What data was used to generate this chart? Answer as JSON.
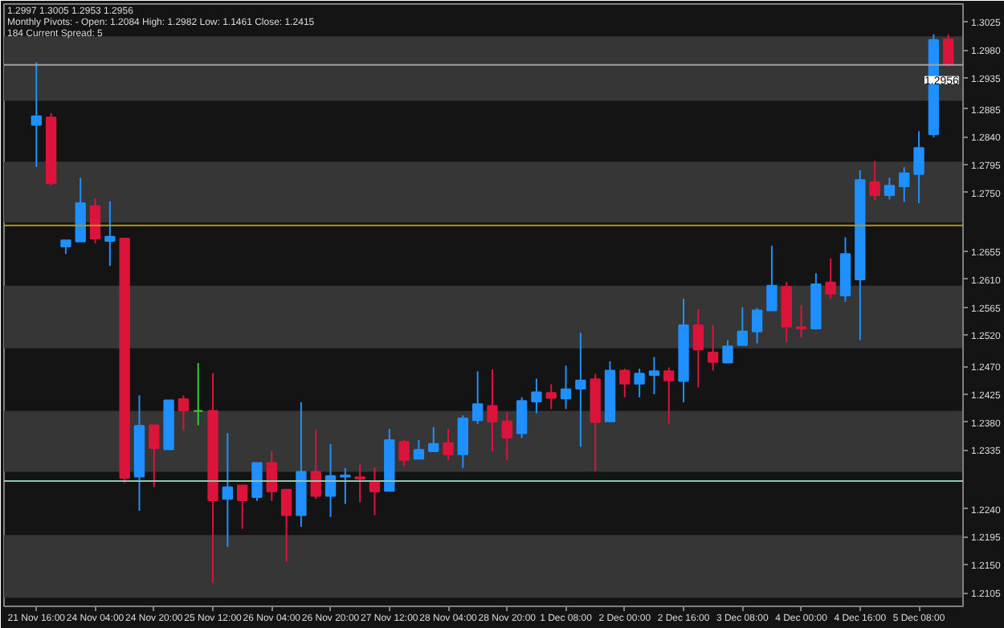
{
  "chart_data": {
    "type": "candlestick",
    "annotations": [
      "1.2997 1.3005 1.2953 1.2956",
      "Monthly Pivots: - Open: 1.2084 High: 1.2982 Low: 1.1461 Close: 1.2415",
      "184   Current Spread: 5"
    ],
    "categories": [
      "21 Nov 16:00",
      null,
      null,
      null,
      "24 Nov 04:00",
      null,
      null,
      null,
      "24 Nov 20:00",
      null,
      null,
      null,
      "25 Nov 12:00",
      null,
      null,
      null,
      "26 Nov 04:00",
      null,
      null,
      null,
      "26 Nov 20:00",
      null,
      null,
      null,
      "27 Nov 12:00",
      null,
      null,
      null,
      "28 Nov 04:00",
      null,
      null,
      null,
      "28 Nov 20:00",
      null,
      null,
      null,
      "1 Dec 08:00",
      null,
      null,
      null,
      "2 Dec 00:00",
      null,
      null,
      null,
      "2 Dec 16:00",
      null,
      null,
      null,
      "3 Dec 08:00",
      null,
      null,
      null,
      "4 Dec 00:00",
      null,
      null,
      null,
      "4 Dec 16:00",
      null,
      null,
      null,
      "5 Dec 08:00",
      null,
      null
    ],
    "ohlc": [
      [
        1.2859,
        1.296,
        1.2791,
        1.2873
      ],
      [
        1.2871,
        1.2878,
        1.2762,
        1.2765
      ],
      [
        1.2663,
        1.2673,
        1.2651,
        1.2673
      ],
      [
        1.2671,
        1.2774,
        1.2671,
        1.2733
      ],
      [
        1.2728,
        1.2741,
        1.2668,
        1.2676
      ],
      [
        1.2672,
        1.2736,
        1.2632,
        1.2679
      ],
      [
        1.2676,
        1.2677,
        1.2282,
        1.229
      ],
      [
        1.2292,
        1.2423,
        1.2237,
        1.2374
      ],
      [
        1.2375,
        1.2375,
        1.2275,
        1.2338
      ],
      [
        1.2336,
        1.2415,
        1.2336,
        1.2415
      ],
      [
        1.2417,
        1.2423,
        1.2367,
        1.2399
      ],
      [
        1.2398,
        1.2475,
        1.2375,
        1.2398
      ],
      [
        1.2398,
        1.2459,
        1.2121,
        1.2254
      ],
      [
        1.2256,
        1.2362,
        1.2179,
        1.2275
      ],
      [
        1.2278,
        1.2278,
        1.2208,
        1.2254
      ],
      [
        1.2259,
        1.2314,
        1.2253,
        1.2314
      ],
      [
        1.2314,
        1.2333,
        1.2253,
        1.2268
      ],
      [
        1.2271,
        1.2271,
        1.2155,
        1.223
      ],
      [
        1.223,
        1.2412,
        1.2211,
        1.23
      ],
      [
        1.23,
        1.2367,
        1.2256,
        1.2261
      ],
      [
        1.2261,
        1.2345,
        1.2227,
        1.2293
      ],
      [
        1.2292,
        1.2306,
        1.2248,
        1.2294
      ],
      [
        1.2291,
        1.2312,
        1.2251,
        1.2289
      ],
      [
        1.2284,
        1.2307,
        1.223,
        1.2268
      ],
      [
        1.2269,
        1.2369,
        1.2269,
        1.2351
      ],
      [
        1.2348,
        1.2351,
        1.2309,
        1.2319
      ],
      [
        1.2321,
        1.2351,
        1.2321,
        1.2335
      ],
      [
        1.2333,
        1.2372,
        1.2333,
        1.2345
      ],
      [
        1.2346,
        1.2369,
        1.2319,
        1.2328
      ],
      [
        1.2328,
        1.2391,
        1.2306,
        1.2386
      ],
      [
        1.2383,
        1.2462,
        1.2377,
        1.2409
      ],
      [
        1.2406,
        1.2465,
        1.2333,
        1.2381
      ],
      [
        1.2381,
        1.2396,
        1.2319,
        1.2355
      ],
      [
        1.2362,
        1.242,
        1.2354,
        1.2414
      ],
      [
        1.2413,
        1.245,
        1.2394,
        1.2428
      ],
      [
        1.2427,
        1.2441,
        1.2401,
        1.2419
      ],
      [
        1.2418,
        1.2471,
        1.2401,
        1.2433
      ],
      [
        1.2434,
        1.2524,
        1.234,
        1.2447
      ],
      [
        1.2449,
        1.2458,
        1.2301,
        1.238
      ],
      [
        1.2381,
        1.2478,
        1.2381,
        1.2463
      ],
      [
        1.2463,
        1.2466,
        1.242,
        1.2442
      ],
      [
        1.2442,
        1.2466,
        1.242,
        1.2458
      ],
      [
        1.2456,
        1.2485,
        1.2425,
        1.2462
      ],
      [
        1.2462,
        1.2468,
        1.2377,
        1.2447
      ],
      [
        1.2446,
        1.2579,
        1.2412,
        1.2536
      ],
      [
        1.2536,
        1.2562,
        1.2436,
        1.2497
      ],
      [
        1.2492,
        1.2536,
        1.2463,
        1.2477
      ],
      [
        1.2476,
        1.2512,
        1.2476,
        1.2502
      ],
      [
        1.2504,
        1.2565,
        1.2504,
        1.2526
      ],
      [
        1.2526,
        1.2564,
        1.2507,
        1.256
      ],
      [
        1.256,
        1.2664,
        1.256,
        1.26
      ],
      [
        1.2598,
        1.2606,
        1.2509,
        1.2534
      ],
      [
        1.2533,
        1.2569,
        1.2516,
        1.2531
      ],
      [
        1.2531,
        1.262,
        1.2529,
        1.2602
      ],
      [
        1.2605,
        1.2644,
        1.2579,
        1.2587
      ],
      [
        1.2584,
        1.2678,
        1.2574,
        1.2651
      ],
      [
        1.261,
        1.2786,
        1.2512,
        1.277
      ],
      [
        1.2767,
        1.2801,
        1.2738,
        1.2746
      ],
      [
        1.2746,
        1.2774,
        1.2739,
        1.2761
      ],
      [
        1.276,
        1.2791,
        1.2735,
        1.2781
      ],
      [
        1.278,
        1.2849,
        1.2733,
        1.2822
      ],
      [
        1.2844,
        1.3005,
        1.2839,
        1.2996
      ],
      [
        1.2997,
        1.3005,
        1.2953,
        1.2956
      ]
    ],
    "colors": [
      "#1e90ff",
      "#dc143c",
      "#1e90ff",
      "#1e90ff",
      "#dc143c",
      "#1e90ff",
      "#dc143c",
      "#1e90ff",
      "#dc143c",
      "#1e90ff",
      "#dc143c",
      "#32cd32",
      "#dc143c",
      "#1e90ff",
      "#dc143c",
      "#1e90ff",
      "#dc143c",
      "#dc143c",
      "#1e90ff",
      "#dc143c",
      "#1e90ff",
      "#1e90ff",
      "#dc143c",
      "#dc143c",
      "#1e90ff",
      "#dc143c",
      "#1e90ff",
      "#1e90ff",
      "#dc143c",
      "#1e90ff",
      "#1e90ff",
      "#dc143c",
      "#dc143c",
      "#1e90ff",
      "#1e90ff",
      "#dc143c",
      "#1e90ff",
      "#1e90ff",
      "#dc143c",
      "#1e90ff",
      "#dc143c",
      "#1e90ff",
      "#1e90ff",
      "#dc143c",
      "#1e90ff",
      "#dc143c",
      "#dc143c",
      "#1e90ff",
      "#1e90ff",
      "#1e90ff",
      "#1e90ff",
      "#dc143c",
      "#dc143c",
      "#1e90ff",
      "#dc143c",
      "#1e90ff",
      "#1e90ff",
      "#dc143c",
      "#1e90ff",
      "#1e90ff",
      "#1e90ff",
      "#1e90ff",
      "#dc143c"
    ],
    "ylim": [
      1.2083,
      1.3054
    ],
    "yticks": [
      {
        "value": 1.3025,
        "label": "1.3025"
      },
      {
        "value": 1.298,
        "label": "1.2980"
      },
      {
        "value": 1.2935,
        "label": "1.2935"
      },
      {
        "value": 1.2885,
        "label": "1.2885"
      },
      {
        "value": 1.284,
        "label": "1.2840"
      },
      {
        "value": 1.2795,
        "label": "1.2795"
      },
      {
        "value": 1.275,
        "label": "1.2750"
      },
      {
        "value": 1.2655,
        "label": "1.2655"
      },
      {
        "value": 1.261,
        "label": "1.2610"
      },
      {
        "value": 1.2565,
        "label": "1.2565"
      },
      {
        "value": 1.252,
        "label": "1.2520"
      },
      {
        "value": 1.247,
        "label": "1.2470"
      },
      {
        "value": 1.2425,
        "label": "1.2425"
      },
      {
        "value": 1.238,
        "label": "1.2380"
      },
      {
        "value": 1.2335,
        "label": "1.2335"
      },
      {
        "value": 1.224,
        "label": "1.2240"
      },
      {
        "value": 1.2195,
        "label": "1.2195"
      },
      {
        "value": 1.215,
        "label": "1.2150"
      },
      {
        "value": 1.2105,
        "label": "1.2105"
      }
    ],
    "bands": [
      {
        "axis": "y",
        "from": 1.2898,
        "to": 1.3002,
        "color": "#363636"
      },
      {
        "axis": "y",
        "from": 1.2702,
        "to": 1.28,
        "color": "#363636"
      },
      {
        "axis": "y",
        "from": 1.2499,
        "to": 1.26,
        "color": "#363636"
      },
      {
        "axis": "y",
        "from": 1.23,
        "to": 1.2398,
        "color": "#363636"
      },
      {
        "axis": "y",
        "from": 1.2097,
        "to": 1.2198,
        "color": "#363636"
      }
    ],
    "ref_lines": [
      {
        "axis": "y",
        "value": 1.2956,
        "label": "1.2956",
        "color": "#a0a0a0"
      },
      {
        "axis": "y",
        "value": 1.2697,
        "label": null,
        "color": "#b8960c"
      },
      {
        "axis": "y",
        "value": 1.2285,
        "label": null,
        "color": "#8fc8b0"
      }
    ],
    "grid": false
  }
}
